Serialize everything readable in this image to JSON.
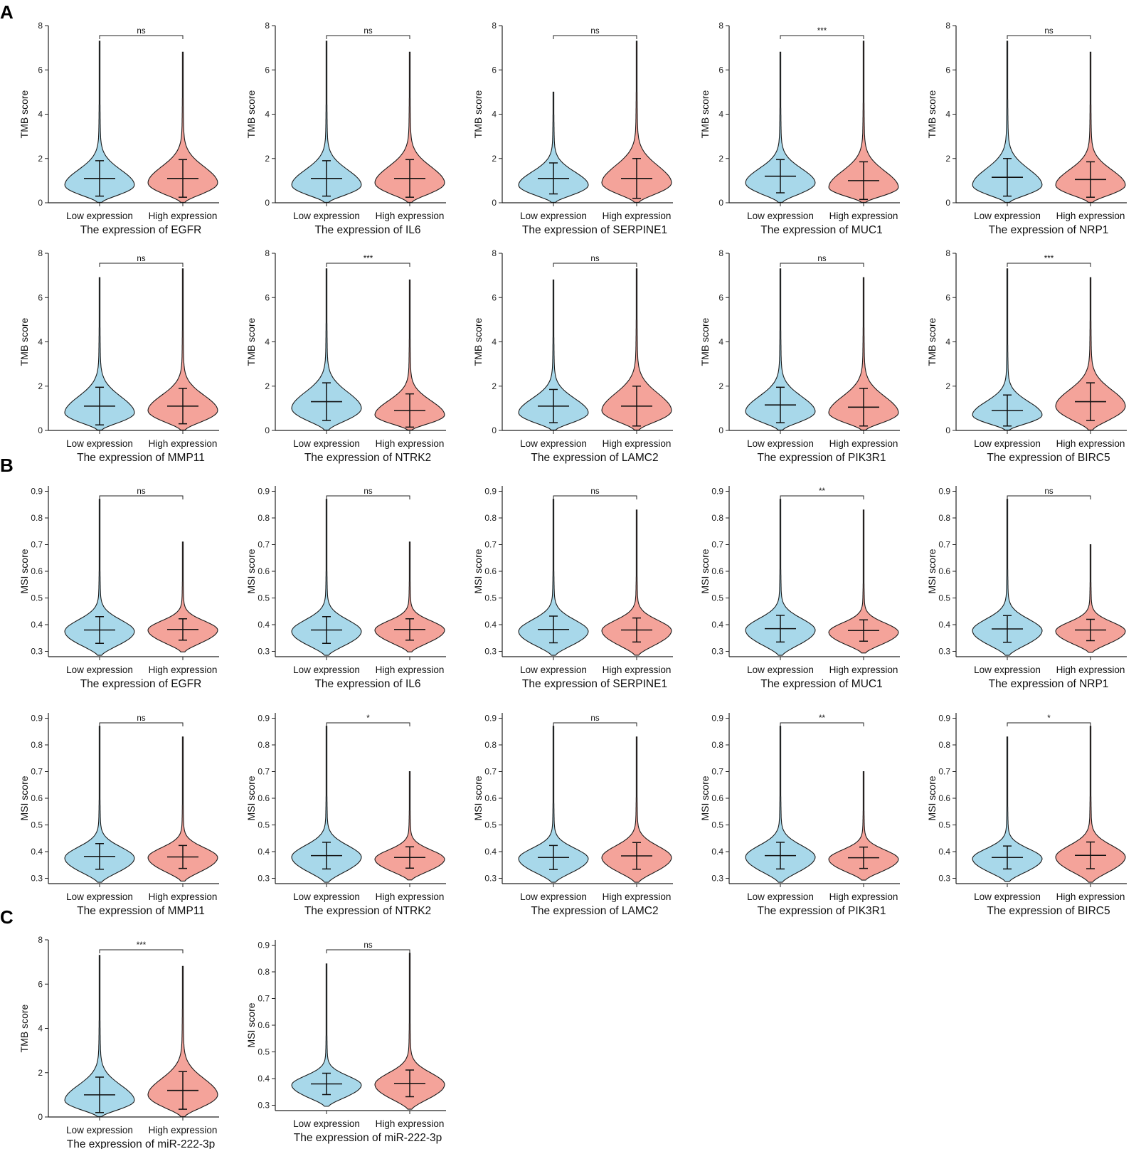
{
  "panels": [
    {
      "letter": "A"
    },
    {
      "letter": "B"
    },
    {
      "letter": "C"
    }
  ],
  "colors": {
    "low": "#a8d8ea",
    "high": "#f4a39a",
    "stroke": "#1a1a1a"
  },
  "chart_data": [
    {
      "type": "violin",
      "panel": "A",
      "gene": "EGFR",
      "ylabel": "TMB score",
      "xlabel": "The expression of EGFR",
      "categories": [
        "Low expression",
        "High expression"
      ],
      "ylim": [
        0,
        8
      ],
      "yticks": [
        "0",
        "2",
        "4",
        "6",
        "8"
      ],
      "significance": "ns",
      "series": [
        {
          "name": "Low expression",
          "median": 1.1,
          "sd": 0.8,
          "max": 7.3,
          "mode": 0.8
        },
        {
          "name": "High expression",
          "median": 1.1,
          "sd": 0.85,
          "max": 6.8,
          "mode": 0.9
        }
      ]
    },
    {
      "type": "violin",
      "panel": "A",
      "gene": "IL6",
      "ylabel": "TMB score",
      "xlabel": "The expression of IL6",
      "categories": [
        "Low expression",
        "High expression"
      ],
      "ylim": [
        0,
        8
      ],
      "yticks": [
        "0",
        "2",
        "4",
        "6",
        "8"
      ],
      "significance": "ns",
      "series": [
        {
          "name": "Low expression",
          "median": 1.1,
          "sd": 0.8,
          "max": 7.3,
          "mode": 0.8
        },
        {
          "name": "High expression",
          "median": 1.1,
          "sd": 0.85,
          "max": 6.8,
          "mode": 0.9
        }
      ]
    },
    {
      "type": "violin",
      "panel": "A",
      "gene": "SERPINE1",
      "ylabel": "TMB score",
      "xlabel": "The expression of SERPINE1",
      "categories": [
        "Low expression",
        "High expression"
      ],
      "ylim": [
        0,
        8
      ],
      "yticks": [
        "0",
        "2",
        "4",
        "6",
        "8"
      ],
      "significance": "ns",
      "series": [
        {
          "name": "Low expression",
          "median": 1.1,
          "sd": 0.7,
          "max": 5.0,
          "mode": 0.8
        },
        {
          "name": "High expression",
          "median": 1.1,
          "sd": 0.9,
          "max": 7.3,
          "mode": 0.9
        }
      ]
    },
    {
      "type": "violin",
      "panel": "A",
      "gene": "MUC1",
      "ylabel": "TMB score",
      "xlabel": "The expression of MUC1",
      "categories": [
        "Low expression",
        "High expression"
      ],
      "ylim": [
        0,
        8
      ],
      "yticks": [
        "0",
        "2",
        "4",
        "6",
        "8"
      ],
      "significance": "***",
      "series": [
        {
          "name": "Low expression",
          "median": 1.2,
          "sd": 0.75,
          "max": 6.8,
          "mode": 0.9
        },
        {
          "name": "High expression",
          "median": 1.0,
          "sd": 0.85,
          "max": 7.3,
          "mode": 0.7
        }
      ]
    },
    {
      "type": "violin",
      "panel": "A",
      "gene": "NRP1",
      "ylabel": "TMB score",
      "xlabel": "The expression of NRP1",
      "categories": [
        "Low expression",
        "High expression"
      ],
      "ylim": [
        0,
        8
      ],
      "yticks": [
        "0",
        "2",
        "4",
        "6",
        "8"
      ],
      "significance": "ns",
      "series": [
        {
          "name": "Low expression",
          "median": 1.15,
          "sd": 0.85,
          "max": 7.3,
          "mode": 0.8
        },
        {
          "name": "High expression",
          "median": 1.05,
          "sd": 0.8,
          "max": 6.8,
          "mode": 0.8
        }
      ]
    },
    {
      "type": "violin",
      "panel": "A",
      "gene": "MMP11",
      "ylabel": "TMB score",
      "xlabel": "The expression of MMP11",
      "categories": [
        "Low expression",
        "High expression"
      ],
      "ylim": [
        0,
        8
      ],
      "yticks": [
        "0",
        "2",
        "4",
        "6",
        "8"
      ],
      "significance": "ns",
      "series": [
        {
          "name": "Low expression",
          "median": 1.1,
          "sd": 0.85,
          "max": 6.9,
          "mode": 0.8
        },
        {
          "name": "High expression",
          "median": 1.1,
          "sd": 0.8,
          "max": 7.3,
          "mode": 0.9
        }
      ]
    },
    {
      "type": "violin",
      "panel": "A",
      "gene": "NTRK2",
      "ylabel": "TMB score",
      "xlabel": "The expression of NTRK2",
      "categories": [
        "Low expression",
        "High expression"
      ],
      "ylim": [
        0,
        8
      ],
      "yticks": [
        "0",
        "2",
        "4",
        "6",
        "8"
      ],
      "significance": "***",
      "series": [
        {
          "name": "Low expression",
          "median": 1.3,
          "sd": 0.85,
          "max": 7.3,
          "mode": 1.0
        },
        {
          "name": "High expression",
          "median": 0.9,
          "sd": 0.75,
          "max": 6.8,
          "mode": 0.7
        }
      ]
    },
    {
      "type": "violin",
      "panel": "A",
      "gene": "LAMC2",
      "ylabel": "TMB score",
      "xlabel": "The expression of LAMC2",
      "categories": [
        "Low expression",
        "High expression"
      ],
      "ylim": [
        0,
        8
      ],
      "yticks": [
        "0",
        "2",
        "4",
        "6",
        "8"
      ],
      "significance": "ns",
      "series": [
        {
          "name": "Low expression",
          "median": 1.1,
          "sd": 0.75,
          "max": 6.8,
          "mode": 0.8
        },
        {
          "name": "High expression",
          "median": 1.1,
          "sd": 0.9,
          "max": 7.3,
          "mode": 0.9
        }
      ]
    },
    {
      "type": "violin",
      "panel": "A",
      "gene": "PIK3R1",
      "ylabel": "TMB score",
      "xlabel": "The expression of PIK3R1",
      "categories": [
        "Low expression",
        "High expression"
      ],
      "ylim": [
        0,
        8
      ],
      "yticks": [
        "0",
        "2",
        "4",
        "6",
        "8"
      ],
      "significance": "ns",
      "series": [
        {
          "name": "Low expression",
          "median": 1.15,
          "sd": 0.8,
          "max": 7.3,
          "mode": 0.85
        },
        {
          "name": "High expression",
          "median": 1.05,
          "sd": 0.85,
          "max": 6.9,
          "mode": 0.8
        }
      ]
    },
    {
      "type": "violin",
      "panel": "A",
      "gene": "BIRC5",
      "ylabel": "TMB score",
      "xlabel": "The expression of BIRC5",
      "categories": [
        "Low expression",
        "High expression"
      ],
      "ylim": [
        0,
        8
      ],
      "yticks": [
        "0",
        "2",
        "4",
        "6",
        "8"
      ],
      "significance": "***",
      "series": [
        {
          "name": "Low expression",
          "median": 0.9,
          "sd": 0.7,
          "max": 7.3,
          "mode": 0.7
        },
        {
          "name": "High expression",
          "median": 1.3,
          "sd": 0.85,
          "max": 6.9,
          "mode": 1.1
        }
      ]
    },
    {
      "type": "violin",
      "panel": "B",
      "gene": "EGFR",
      "ylabel": "MSI score",
      "xlabel": "The expression of EGFR",
      "categories": [
        "Low expression",
        "High expression"
      ],
      "ylim": [
        0.28,
        0.92
      ],
      "yticks": [
        "0.3",
        "0.4",
        "0.5",
        "0.6",
        "0.7",
        "0.8",
        "0.9"
      ],
      "significance": "ns",
      "series": [
        {
          "name": "Low expression",
          "median": 0.38,
          "sd": 0.05,
          "max": 0.87,
          "mode": 0.375
        },
        {
          "name": "High expression",
          "median": 0.382,
          "sd": 0.04,
          "max": 0.71,
          "mode": 0.38
        }
      ]
    },
    {
      "type": "violin",
      "panel": "B",
      "gene": "IL6",
      "ylabel": "MSI score",
      "xlabel": "The expression of IL6",
      "categories": [
        "Low expression",
        "High expression"
      ],
      "ylim": [
        0.28,
        0.92
      ],
      "yticks": [
        "0.3",
        "0.4",
        "0.5",
        "0.6",
        "0.7",
        "0.8",
        "0.9"
      ],
      "significance": "ns",
      "series": [
        {
          "name": "Low expression",
          "median": 0.38,
          "sd": 0.05,
          "max": 0.87,
          "mode": 0.375
        },
        {
          "name": "High expression",
          "median": 0.382,
          "sd": 0.04,
          "max": 0.71,
          "mode": 0.38
        }
      ]
    },
    {
      "type": "violin",
      "panel": "B",
      "gene": "SERPINE1",
      "ylabel": "MSI score",
      "xlabel": "The expression of SERPINE1",
      "categories": [
        "Low expression",
        "High expression"
      ],
      "ylim": [
        0.28,
        0.92
      ],
      "yticks": [
        "0.3",
        "0.4",
        "0.5",
        "0.6",
        "0.7",
        "0.8",
        "0.9"
      ],
      "significance": "ns",
      "series": [
        {
          "name": "Low expression",
          "median": 0.382,
          "sd": 0.05,
          "max": 0.87,
          "mode": 0.375
        },
        {
          "name": "High expression",
          "median": 0.38,
          "sd": 0.045,
          "max": 0.83,
          "mode": 0.378
        }
      ]
    },
    {
      "type": "violin",
      "panel": "B",
      "gene": "MUC1",
      "ylabel": "MSI score",
      "xlabel": "The expression of MUC1",
      "categories": [
        "Low expression",
        "High expression"
      ],
      "ylim": [
        0.28,
        0.92
      ],
      "yticks": [
        "0.3",
        "0.4",
        "0.5",
        "0.6",
        "0.7",
        "0.8",
        "0.9"
      ],
      "significance": "**",
      "series": [
        {
          "name": "Low expression",
          "median": 0.385,
          "sd": 0.05,
          "max": 0.87,
          "mode": 0.38
        },
        {
          "name": "High expression",
          "median": 0.378,
          "sd": 0.04,
          "max": 0.83,
          "mode": 0.372
        }
      ]
    },
    {
      "type": "violin",
      "panel": "B",
      "gene": "NRP1",
      "ylabel": "MSI score",
      "xlabel": "The expression of NRP1",
      "categories": [
        "Low expression",
        "High expression"
      ],
      "ylim": [
        0.28,
        0.92
      ],
      "yticks": [
        "0.3",
        "0.4",
        "0.5",
        "0.6",
        "0.7",
        "0.8",
        "0.9"
      ],
      "significance": "ns",
      "series": [
        {
          "name": "Low expression",
          "median": 0.384,
          "sd": 0.05,
          "max": 0.87,
          "mode": 0.378
        },
        {
          "name": "High expression",
          "median": 0.38,
          "sd": 0.04,
          "max": 0.7,
          "mode": 0.376
        }
      ]
    },
    {
      "type": "violin",
      "panel": "B",
      "gene": "MMP11",
      "ylabel": "MSI score",
      "xlabel": "The expression of MMP11",
      "categories": [
        "Low expression",
        "High expression"
      ],
      "ylim": [
        0.28,
        0.92
      ],
      "yticks": [
        "0.3",
        "0.4",
        "0.5",
        "0.6",
        "0.7",
        "0.8",
        "0.9"
      ],
      "significance": "ns",
      "series": [
        {
          "name": "Low expression",
          "median": 0.382,
          "sd": 0.048,
          "max": 0.87,
          "mode": 0.376
        },
        {
          "name": "High expression",
          "median": 0.38,
          "sd": 0.043,
          "max": 0.83,
          "mode": 0.378
        }
      ]
    },
    {
      "type": "violin",
      "panel": "B",
      "gene": "NTRK2",
      "ylabel": "MSI score",
      "xlabel": "The expression of NTRK2",
      "categories": [
        "Low expression",
        "High expression"
      ],
      "ylim": [
        0.28,
        0.92
      ],
      "yticks": [
        "0.3",
        "0.4",
        "0.5",
        "0.6",
        "0.7",
        "0.8",
        "0.9"
      ],
      "significance": "*",
      "series": [
        {
          "name": "Low expression",
          "median": 0.385,
          "sd": 0.05,
          "max": 0.87,
          "mode": 0.38
        },
        {
          "name": "High expression",
          "median": 0.378,
          "sd": 0.04,
          "max": 0.7,
          "mode": 0.372
        }
      ]
    },
    {
      "type": "violin",
      "panel": "B",
      "gene": "LAMC2",
      "ylabel": "MSI score",
      "xlabel": "The expression of LAMC2",
      "categories": [
        "Low expression",
        "High expression"
      ],
      "ylim": [
        0.28,
        0.92
      ],
      "yticks": [
        "0.3",
        "0.4",
        "0.5",
        "0.6",
        "0.7",
        "0.8",
        "0.9"
      ],
      "significance": "ns",
      "series": [
        {
          "name": "Low expression",
          "median": 0.378,
          "sd": 0.045,
          "max": 0.87,
          "mode": 0.374
        },
        {
          "name": "High expression",
          "median": 0.384,
          "sd": 0.05,
          "max": 0.83,
          "mode": 0.378
        }
      ]
    },
    {
      "type": "violin",
      "panel": "B",
      "gene": "PIK3R1",
      "ylabel": "MSI score",
      "xlabel": "The expression of PIK3R1",
      "categories": [
        "Low expression",
        "High expression"
      ],
      "ylim": [
        0.28,
        0.92
      ],
      "yticks": [
        "0.3",
        "0.4",
        "0.5",
        "0.6",
        "0.7",
        "0.8",
        "0.9"
      ],
      "significance": "**",
      "series": [
        {
          "name": "Low expression",
          "median": 0.385,
          "sd": 0.05,
          "max": 0.87,
          "mode": 0.38
        },
        {
          "name": "High expression",
          "median": 0.377,
          "sd": 0.04,
          "max": 0.7,
          "mode": 0.372
        }
      ]
    },
    {
      "type": "violin",
      "panel": "B",
      "gene": "BIRC5",
      "ylabel": "MSI score",
      "xlabel": "The expression of BIRC5",
      "categories": [
        "Low expression",
        "High expression"
      ],
      "ylim": [
        0.28,
        0.92
      ],
      "yticks": [
        "0.3",
        "0.4",
        "0.5",
        "0.6",
        "0.7",
        "0.8",
        "0.9"
      ],
      "significance": "*",
      "series": [
        {
          "name": "Low expression",
          "median": 0.378,
          "sd": 0.043,
          "max": 0.83,
          "mode": 0.374
        },
        {
          "name": "High expression",
          "median": 0.386,
          "sd": 0.05,
          "max": 0.87,
          "mode": 0.38
        }
      ]
    },
    {
      "type": "violin",
      "panel": "C",
      "gene": "miR-222-3p",
      "ylabel": "TMB score",
      "xlabel": "The expression of miR-222-3p",
      "categories": [
        "Low expression",
        "High expression"
      ],
      "ylim": [
        0,
        8
      ],
      "yticks": [
        "0",
        "2",
        "4",
        "6",
        "8"
      ],
      "significance": "***",
      "series": [
        {
          "name": "Low expression",
          "median": 1.0,
          "sd": 0.8,
          "max": 7.3,
          "mode": 0.75
        },
        {
          "name": "High expression",
          "median": 1.2,
          "sd": 0.85,
          "max": 6.8,
          "mode": 1.0
        }
      ]
    },
    {
      "type": "violin",
      "panel": "C",
      "gene": "miR-222-3p",
      "ylabel": "MSI score",
      "xlabel": "The expression of miR-222-3p",
      "categories": [
        "Low expression",
        "High expression"
      ],
      "ylim": [
        0.28,
        0.92
      ],
      "yticks": [
        "0.3",
        "0.4",
        "0.5",
        "0.6",
        "0.7",
        "0.8",
        "0.9"
      ],
      "significance": "ns",
      "series": [
        {
          "name": "Low expression",
          "median": 0.38,
          "sd": 0.04,
          "max": 0.83,
          "mode": 0.376
        },
        {
          "name": "High expression",
          "median": 0.382,
          "sd": 0.05,
          "max": 0.87,
          "mode": 0.378
        }
      ]
    }
  ]
}
